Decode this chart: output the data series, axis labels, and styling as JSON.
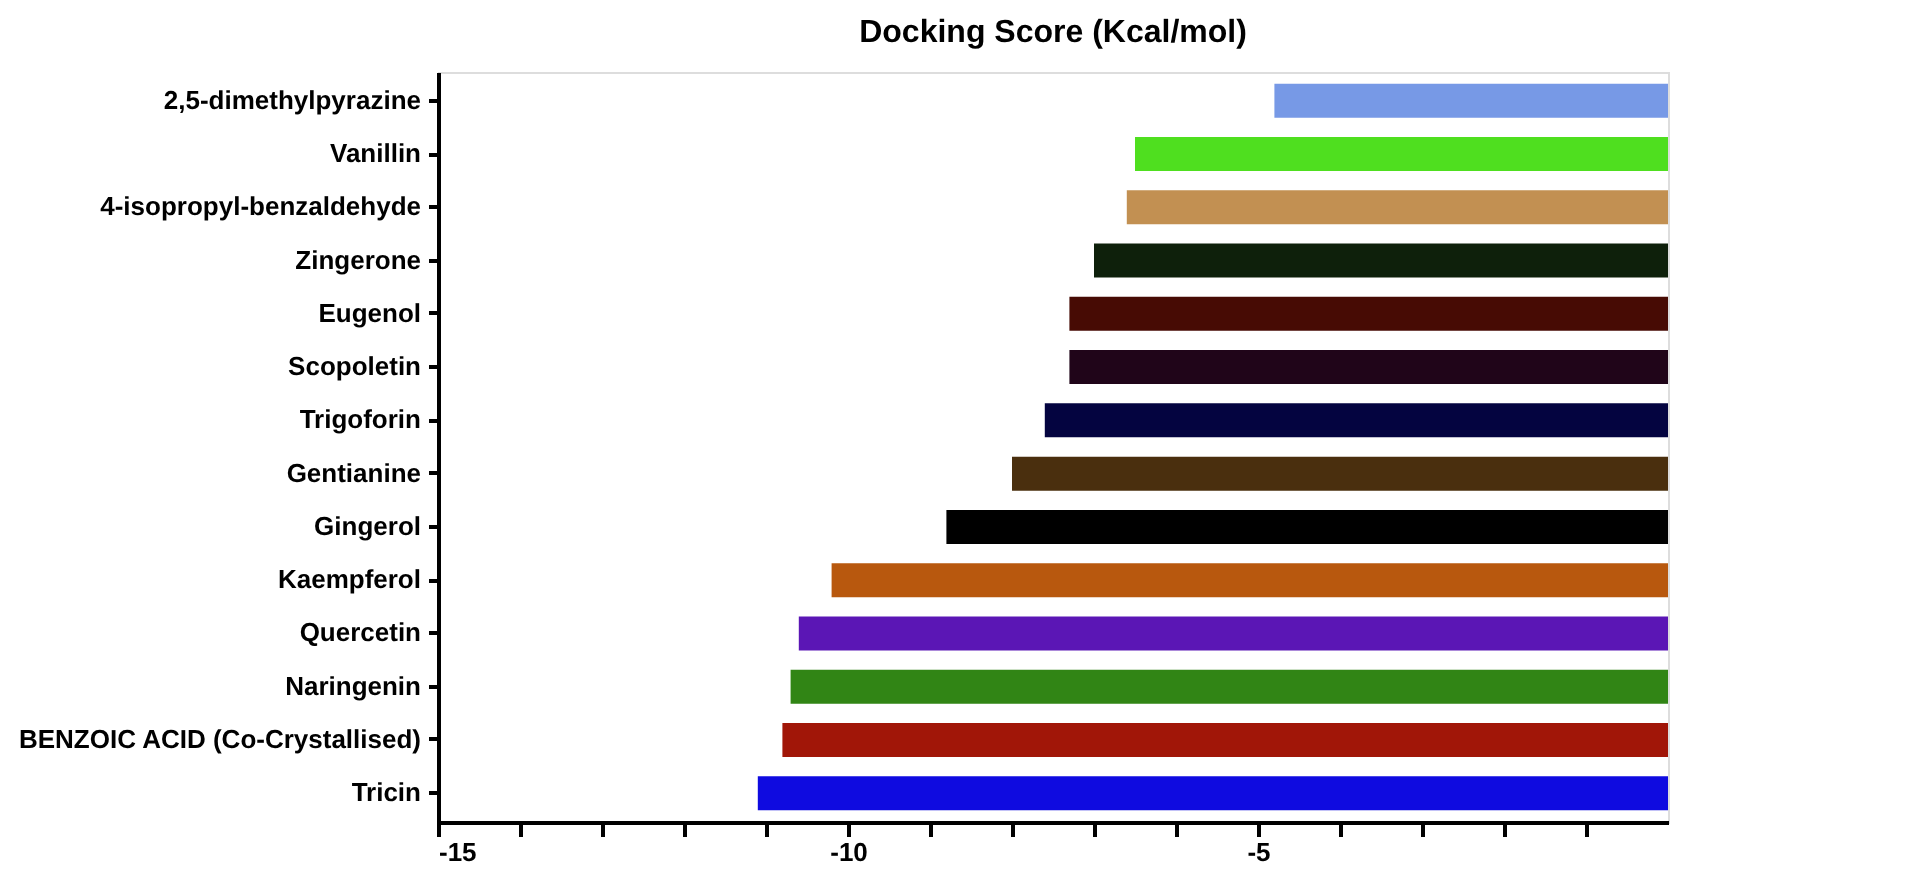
{
  "chart_data": {
    "type": "bar",
    "orientation": "horizontal",
    "title": "Docking Score (Kcal/mol)",
    "categories": [
      "2,5-dimethylpyrazine",
      "Vanillin",
      "4-isopropyl-benzaldehyde",
      "Zingerone",
      "Eugenol",
      "Scopoletin",
      "Trigoforin",
      "Gentianine",
      "Gingerol",
      "Kaempferol",
      "Quercetin",
      "Naringenin",
      "BENZOIC ACID (Co-Crystallised)",
      "Tricin"
    ],
    "values": [
      -4.8,
      -6.5,
      -6.6,
      -7.0,
      -7.3,
      -7.3,
      -7.6,
      -8.0,
      -8.8,
      -10.2,
      -10.6,
      -10.7,
      -10.8,
      -11.1
    ],
    "colors": [
      "#7799e6",
      "#4fdf1f",
      "#c29052",
      "#0e200b",
      "#470b04",
      "#200519",
      "#040440",
      "#4a2f0e",
      "#000000",
      "#b8580e",
      "#5b16b5",
      "#318515",
      "#a11608",
      "#0f0be0"
    ],
    "xlim": [
      -15,
      0
    ],
    "xticks": [
      -15,
      {
        "value": -14,
        "label": null
      },
      {
        "value": -13,
        "label": null
      },
      {
        "value": -12,
        "label": null
      },
      {
        "value": -11,
        "label": null
      },
      -10,
      {
        "value": -9,
        "label": null
      },
      {
        "value": -8,
        "label": null
      },
      {
        "value": -7,
        "label": null
      },
      {
        "value": -6,
        "label": null
      },
      -5,
      {
        "value": -4,
        "label": null
      },
      {
        "value": -3,
        "label": null
      },
      {
        "value": -2,
        "label": null
      },
      {
        "value": -1,
        "label": null
      }
    ],
    "grid": false
  }
}
